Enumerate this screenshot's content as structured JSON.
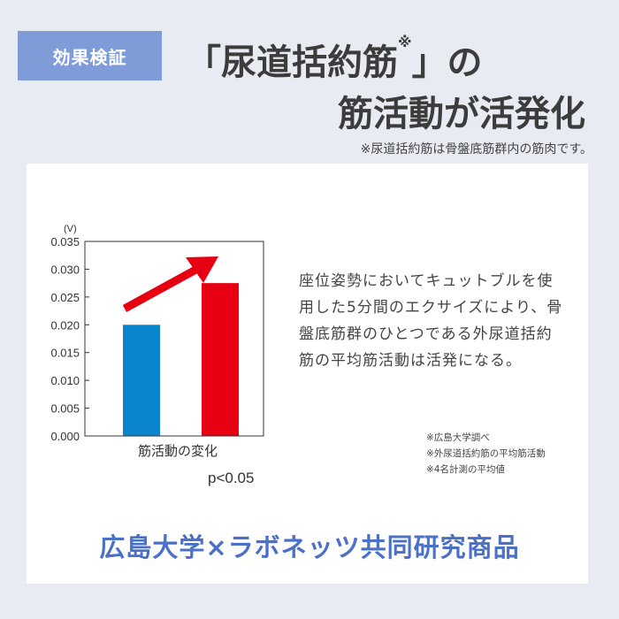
{
  "badge": "効果検証",
  "title": {
    "line1": "「尿道括約筋",
    "mark": "※",
    "line1_end": "」の",
    "line2": "筋活動が活発化"
  },
  "note": "※尿道括約筋は骨盤底筋群内の筋肉です。",
  "description": "座位姿勢においてキュットブルを使用した5分間のエクサイズにより、骨盤底筋群のひとつである外尿道括約筋の平均筋活動は活発になる。",
  "footnotes": [
    "※広島大学調べ",
    "※外尿道括約筋の平均筋活動",
    "※4名計測の平均値"
  ],
  "bottom_text": "広島大学×ラボネッツ共同研究商品",
  "chart_data": {
    "type": "bar",
    "unit_label": "(V)",
    "xlabel": "筋活動の変化",
    "annotation": "p<0.05",
    "ylim": [
      0,
      0.035
    ],
    "yticks": [
      "0.000",
      "0.005",
      "0.010",
      "0.015",
      "0.020",
      "0.025",
      "0.030",
      "0.035"
    ],
    "values": [
      0.02,
      0.0275
    ],
    "colors": [
      "#0a84cc",
      "#e60012"
    ],
    "arrow_color": "#e60012"
  }
}
